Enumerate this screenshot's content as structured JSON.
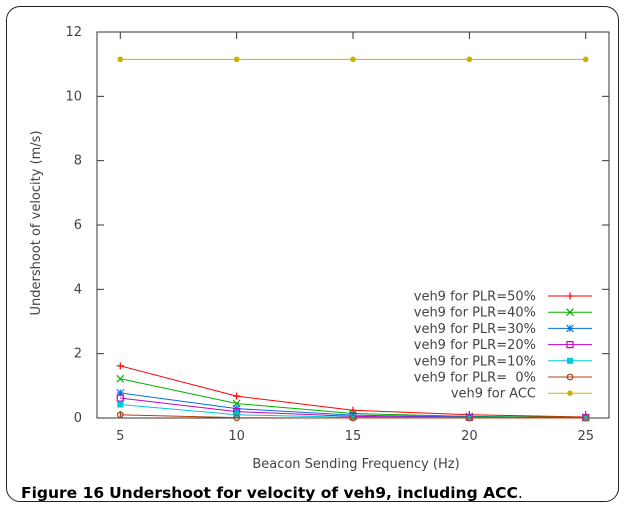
{
  "chart_data": {
    "type": "line",
    "xlabel": "Beacon Sending Frequency (Hz)",
    "ylabel": "Undershoot of velocity (m/s)",
    "x": [
      5,
      10,
      15,
      20,
      25
    ],
    "xlim": [
      4,
      26
    ],
    "ylim": [
      0,
      12
    ],
    "xticks": [
      5,
      10,
      15,
      20,
      25
    ],
    "yticks": [
      0,
      2,
      4,
      6,
      8,
      10,
      12
    ],
    "grid": false,
    "legend_position": "bottom-right",
    "series": [
      {
        "name": "veh9 for PLR=50%",
        "color": "#ff0000",
        "marker": "plus",
        "values": [
          1.62,
          0.68,
          0.24,
          0.1,
          0.03
        ]
      },
      {
        "name": "veh9 for PLR=40%",
        "color": "#00b000",
        "marker": "cross",
        "values": [
          1.22,
          0.45,
          0.14,
          0.05,
          0.02
        ]
      },
      {
        "name": "veh9 for PLR=30%",
        "color": "#0070e0",
        "marker": "star",
        "values": [
          0.78,
          0.29,
          0.09,
          0.03,
          0.01
        ]
      },
      {
        "name": "veh9 for PLR=20%",
        "color": "#c000c0",
        "marker": "square-open",
        "values": [
          0.62,
          0.2,
          0.05,
          0.02,
          0.01
        ]
      },
      {
        "name": "veh9 for PLR=10%",
        "color": "#00c8d8",
        "marker": "square-filled",
        "values": [
          0.42,
          0.1,
          0.02,
          0.01,
          0.0
        ]
      },
      {
        "name": "veh9 for PLR=  0%",
        "color": "#b04010",
        "marker": "circle-open",
        "values": [
          0.1,
          0.01,
          0.0,
          0.0,
          0.0
        ]
      },
      {
        "name": "veh9 for ACC",
        "color": "#c8b400",
        "marker": "circle-filled",
        "values": [
          11.15,
          11.15,
          11.15,
          11.15,
          11.15
        ]
      }
    ]
  },
  "caption": {
    "label": "Figure 16",
    "text": "Undershoot for velocity of veh9, including ACC",
    "end": "."
  }
}
